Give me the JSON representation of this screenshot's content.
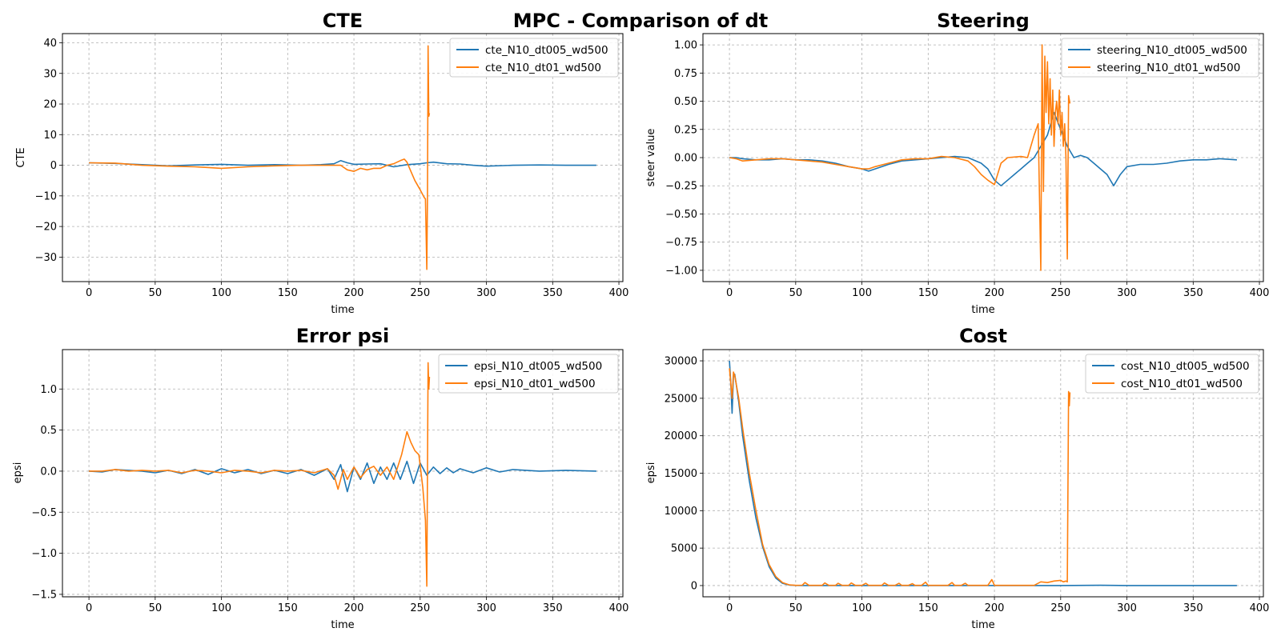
{
  "figure": {
    "suptitle": "MPC - Comparison of dt"
  },
  "colors": {
    "series_dt005": "#1f77b4",
    "series_dt01": "#ff7f0e",
    "grid": "#b0b0b0",
    "axes": "#000000"
  },
  "chart_data": [
    {
      "type": "line",
      "title": "CTE",
      "xlabel": "time",
      "ylabel": "CTE",
      "xlim": [
        -20,
        403
      ],
      "ylim": [
        -38,
        43
      ],
      "xticks": [
        0,
        50,
        100,
        150,
        200,
        250,
        300,
        350,
        400
      ],
      "yticks": [
        -30,
        -20,
        -10,
        0,
        10,
        20,
        30,
        40
      ],
      "ytick_labels": [
        "−30",
        "−20",
        "−10",
        "0",
        "10",
        "20",
        "30",
        "40"
      ],
      "grid": true,
      "legend_position": "upper right",
      "series": [
        {
          "name": "cte_N10_dt005_wd500",
          "color": "#1f77b4",
          "x": [
            0,
            20,
            40,
            60,
            80,
            100,
            120,
            140,
            160,
            175,
            185,
            190,
            195,
            200,
            210,
            220,
            230,
            240,
            250,
            255,
            260,
            270,
            280,
            290,
            300,
            320,
            340,
            360,
            383
          ],
          "y": [
            0.8,
            0.6,
            0.2,
            -0.2,
            0.1,
            0.3,
            0,
            0.2,
            0,
            0.2,
            0.5,
            1.5,
            0.8,
            0.3,
            0.4,
            0.5,
            -0.5,
            0.2,
            0.5,
            0.8,
            1.0,
            0.5,
            0.4,
            0,
            -0.3,
            0,
            0.1,
            0,
            0
          ]
        },
        {
          "name": "cte_N10_dt01_wd500",
          "color": "#ff7f0e",
          "x": [
            0,
            20,
            40,
            60,
            80,
            100,
            120,
            140,
            160,
            180,
            190,
            195,
            200,
            205,
            210,
            215,
            220,
            225,
            230,
            235,
            238,
            240,
            243,
            246,
            250,
            253,
            254,
            255,
            255.5,
            256,
            256.5,
            257
          ],
          "y": [
            0.8,
            0.7,
            0,
            -0.3,
            -0.5,
            -1,
            -0.5,
            -0.2,
            0,
            0,
            0,
            -1.5,
            -2,
            -1,
            -1.5,
            -1,
            -1,
            0,
            0.5,
            1.5,
            2,
            1,
            -2,
            -5,
            -8,
            -10.5,
            -11,
            -34,
            -11,
            39,
            16,
            17
          ]
        }
      ]
    },
    {
      "type": "line",
      "title": "Steering",
      "xlabel": "time",
      "ylabel": "steer value",
      "xlim": [
        -20,
        403
      ],
      "ylim": [
        -1.1,
        1.1
      ],
      "xticks": [
        0,
        50,
        100,
        150,
        200,
        250,
        300,
        350,
        400
      ],
      "yticks": [
        -1.0,
        -0.75,
        -0.5,
        -0.25,
        0.0,
        0.25,
        0.5,
        0.75,
        1.0
      ],
      "ytick_labels": [
        "−1.00",
        "−0.75",
        "−0.50",
        "−0.25",
        "0.00",
        "0.25",
        "0.50",
        "0.75",
        "1.00"
      ],
      "grid": true,
      "legend_position": "upper right",
      "series": [
        {
          "name": "steering_N10_dt005_wd500",
          "color": "#1f77b4",
          "x": [
            0,
            5,
            10,
            20,
            30,
            40,
            50,
            60,
            70,
            80,
            90,
            100,
            105,
            110,
            120,
            130,
            140,
            150,
            160,
            170,
            180,
            190,
            195,
            200,
            205,
            210,
            215,
            220,
            225,
            230,
            235,
            240,
            245,
            250,
            255,
            260,
            265,
            270,
            275,
            280,
            285,
            290,
            295,
            300,
            310,
            320,
            330,
            340,
            350,
            360,
            370,
            383
          ],
          "y": [
            0,
            0,
            -0.01,
            -0.02,
            -0.02,
            -0.01,
            -0.02,
            -0.02,
            -0.03,
            -0.05,
            -0.08,
            -0.1,
            -0.12,
            -0.1,
            -0.06,
            -0.03,
            -0.02,
            -0.01,
            0,
            0.01,
            0,
            -0.05,
            -0.1,
            -0.2,
            -0.25,
            -0.2,
            -0.15,
            -0.1,
            -0.05,
            0,
            0.1,
            0.2,
            0.4,
            0.25,
            0.1,
            0,
            0.02,
            0,
            -0.05,
            -0.1,
            -0.15,
            -0.25,
            -0.15,
            -0.08,
            -0.06,
            -0.06,
            -0.05,
            -0.03,
            -0.02,
            -0.02,
            -0.01,
            -0.02
          ]
        },
        {
          "name": "steering_N10_dt01_wd500",
          "color": "#ff7f0e",
          "x": [
            0,
            5,
            10,
            20,
            30,
            40,
            50,
            60,
            70,
            80,
            90,
            100,
            105,
            110,
            120,
            130,
            140,
            150,
            160,
            170,
            180,
            185,
            190,
            195,
            200,
            205,
            210,
            220,
            225,
            230,
            233,
            235,
            236,
            237,
            238,
            239,
            240,
            241,
            242,
            243,
            244,
            245,
            246,
            247,
            248,
            249,
            250,
            251,
            252,
            253,
            254,
            255,
            256,
            257
          ],
          "y": [
            0,
            -0.01,
            -0.03,
            -0.02,
            -0.01,
            -0.01,
            -0.02,
            -0.03,
            -0.04,
            -0.06,
            -0.08,
            -0.1,
            -0.1,
            -0.08,
            -0.05,
            -0.02,
            -0.01,
            -0.01,
            0.01,
            0,
            -0.03,
            -0.08,
            -0.15,
            -0.2,
            -0.24,
            -0.05,
            0,
            0.01,
            0,
            0.2,
            0.3,
            -1.0,
            1.0,
            -0.3,
            0.9,
            0.4,
            0.85,
            0.3,
            0.7,
            0.2,
            0.6,
            0.1,
            0.4,
            0.5,
            0.3,
            0.6,
            0.2,
            0.4,
            0.1,
            0.3,
            0.0,
            -0.9,
            0.55,
            0.48
          ]
        }
      ]
    },
    {
      "type": "line",
      "title": "Error psi",
      "xlabel": "time",
      "ylabel": "epsi",
      "xlim": [
        -20,
        403
      ],
      "ylim": [
        -1.53,
        1.48
      ],
      "xticks": [
        0,
        50,
        100,
        150,
        200,
        250,
        300,
        350,
        400
      ],
      "yticks": [
        -1.5,
        -1.0,
        -0.5,
        0.0,
        0.5,
        1.0
      ],
      "ytick_labels": [
        "−1.5",
        "−1.0",
        "−0.5",
        "0.0",
        "0.5",
        "1.0"
      ],
      "grid": true,
      "legend_position": "upper right",
      "series": [
        {
          "name": "epsi_N10_dt005_wd500",
          "color": "#1f77b4",
          "x": [
            0,
            10,
            20,
            30,
            40,
            50,
            60,
            70,
            80,
            90,
            100,
            110,
            120,
            130,
            140,
            150,
            160,
            170,
            180,
            185,
            190,
            195,
            200,
            205,
            210,
            215,
            220,
            225,
            230,
            235,
            240,
            245,
            250,
            255,
            260,
            265,
            270,
            275,
            280,
            290,
            300,
            310,
            320,
            340,
            360,
            383
          ],
          "y": [
            0,
            -0.01,
            0.02,
            0.01,
            0,
            -0.02,
            0.01,
            -0.03,
            0.02,
            -0.04,
            0.03,
            -0.02,
            0.02,
            -0.03,
            0.01,
            -0.03,
            0.02,
            -0.05,
            0.03,
            -0.1,
            0.08,
            -0.25,
            0.05,
            -0.1,
            0.1,
            -0.15,
            0.05,
            -0.1,
            0.1,
            -0.1,
            0.12,
            -0.15,
            0.1,
            -0.05,
            0.05,
            -0.03,
            0.04,
            -0.02,
            0.03,
            -0.02,
            0.04,
            -0.01,
            0.02,
            0,
            0.01,
            0
          ]
        },
        {
          "name": "epsi_N10_dt01_wd500",
          "color": "#ff7f0e",
          "x": [
            0,
            10,
            20,
            30,
            40,
            50,
            60,
            70,
            80,
            90,
            100,
            110,
            120,
            130,
            140,
            150,
            160,
            170,
            180,
            185,
            188,
            192,
            195,
            200,
            205,
            210,
            215,
            220,
            225,
            230,
            233,
            236,
            240,
            243,
            246,
            249,
            252,
            254,
            255,
            256,
            256.5,
            257
          ],
          "y": [
            0,
            0,
            0.02,
            0,
            0.01,
            0,
            0.01,
            -0.02,
            0.01,
            0,
            -0.02,
            0.01,
            0,
            -0.02,
            0.01,
            0,
            0.01,
            -0.02,
            0.03,
            -0.05,
            -0.22,
            0.02,
            -0.1,
            0.05,
            -0.08,
            0.02,
            0.06,
            -0.05,
            0.05,
            -0.1,
            0.05,
            0.2,
            0.48,
            0.35,
            0.25,
            0.2,
            -0.2,
            -0.6,
            -1.4,
            1.32,
            1.0,
            1.15
          ]
        }
      ]
    },
    {
      "type": "line",
      "title": "Cost",
      "xlabel": "time",
      "ylabel": "epsi",
      "xlim": [
        -20,
        403
      ],
      "ylim": [
        -1500,
        31500
      ],
      "xticks": [
        0,
        50,
        100,
        150,
        200,
        250,
        300,
        350,
        400
      ],
      "yticks": [
        0,
        5000,
        10000,
        15000,
        20000,
        25000,
        30000
      ],
      "ytick_labels": [
        "0",
        "5000",
        "10000",
        "15000",
        "20000",
        "25000",
        "30000"
      ],
      "grid": true,
      "legend_position": "upper right",
      "series": [
        {
          "name": "cost_N10_dt005_wd500",
          "color": "#1f77b4",
          "x": [
            0,
            1,
            2,
            3,
            4,
            5,
            7,
            10,
            15,
            20,
            25,
            30,
            35,
            40,
            45,
            50,
            60,
            80,
            100,
            150,
            200,
            250,
            280,
            300,
            340,
            383
          ],
          "y": [
            30000,
            27000,
            23000,
            28000,
            28200,
            27000,
            24500,
            20000,
            14000,
            9000,
            5200,
            2500,
            1000,
            300,
            80,
            20,
            10,
            10,
            10,
            10,
            10,
            10,
            40,
            10,
            10,
            10
          ]
        },
        {
          "name": "cost_N10_dt01_wd500",
          "color": "#ff7f0e",
          "x": [
            0,
            2,
            3,
            4,
            5,
            7,
            10,
            15,
            20,
            25,
            30,
            35,
            40,
            45,
            50,
            55,
            57,
            60,
            70,
            72,
            75,
            80,
            82,
            85,
            90,
            92,
            95,
            100,
            103,
            105,
            110,
            115,
            117,
            120,
            125,
            128,
            130,
            135,
            138,
            140,
            145,
            148,
            150,
            155,
            160,
            165,
            168,
            170,
            175,
            178,
            180,
            185,
            190,
            195,
            198,
            200,
            205,
            210,
            220,
            230,
            235,
            240,
            245,
            250,
            252,
            254,
            255,
            256,
            256.5,
            257
          ],
          "y": [
            29000,
            25000,
            28500,
            28000,
            27000,
            25000,
            21000,
            15000,
            10000,
            5500,
            2800,
            1200,
            400,
            100,
            30,
            50,
            400,
            30,
            30,
            350,
            30,
            30,
            300,
            30,
            30,
            350,
            30,
            30,
            300,
            30,
            30,
            30,
            350,
            30,
            30,
            300,
            30,
            30,
            250,
            30,
            30,
            450,
            30,
            30,
            30,
            30,
            400,
            30,
            30,
            300,
            30,
            30,
            30,
            30,
            800,
            30,
            30,
            30,
            30,
            30,
            500,
            400,
            600,
            700,
            500,
            600,
            500,
            25900,
            24000,
            25800
          ]
        }
      ]
    }
  ]
}
